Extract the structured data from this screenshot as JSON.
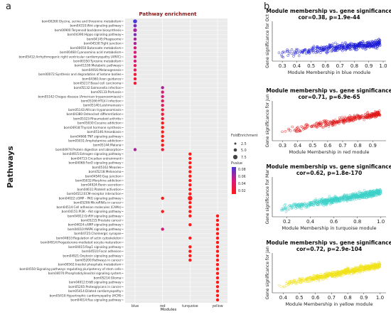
{
  "panel_labels": {
    "a": "a",
    "b": "b"
  },
  "chart_data": [
    {
      "type": "scatter",
      "title": "Pathway enrichment",
      "xlabel": "Modules",
      "ylabel": "Pathways",
      "categories": [
        "blue",
        "red",
        "turquoise",
        "yellow"
      ],
      "size_legend": {
        "title": "FoldEnrichment",
        "values": [
          "2.5",
          "5.0",
          "7.5"
        ]
      },
      "color_legend": {
        "title": "Pvalue",
        "ticks": [
          "0.08",
          "0.06",
          "0.04",
          "0.02"
        ],
        "colors": [
          "#4a38d8",
          "#d81a7a",
          "#ff1a1a"
        ]
      },
      "pathways": [
        "bom00260:Glycine, serine and threonine metabolism~",
        "bom04310:Wnt signaling pathway~",
        "bom00900:Terpenoid backbone biosynthesis~",
        "bom04390:Hippo signaling pathway~",
        "bom04145:Phagosome~",
        "bom04530:Tight junction~",
        "bom00650:Butanoate metabolism~",
        "bom00460:Cyanoamino acid metabolism~",
        "bom05412:Arrhythmogenic right ventricular cardiomyopathy (ARVC)~",
        "bom00350:Tyrosine metabolism~",
        "bom01100:Metabolic pathways~",
        "bom04916:Melanogenesis~",
        "bom00072:Synthesis and degradation of ketone bodies~",
        "bom04360:Axon guidance~",
        "bom05217:Basal cell carcinoma~",
        "bom05132:Salmonella infection~",
        "bom05133:Pertussis~",
        "bom05142:Chagas disease (American trypanosomiasis)~",
        "bom05166:HTLV-I infection~",
        "bom05140:Leishmaniasis~",
        "bom05143:African trypanosomiasis~",
        "bom04380:Osteoclast differentiation~",
        "bom05323:Rheumatoid arthritis~",
        "bom05030:Cocaine addiction~",
        "bom04918:Thyroid hormone synthesis~",
        "bom05146:Amoebiasis~",
        "bom04668:TNF signaling pathway~",
        "bom05031:Amphetamine addiction~",
        "bom05144:Malaria~",
        "bom04974:Protein digestion and absorption~",
        "bom04915:Estrogen signaling pathway~",
        "bom04713:Circadian entrainment~",
        "bom04068:FoxO signaling pathway~",
        "bom05162:Measles~",
        "bom05218:Melanoma~",
        "bom04540:Gap junction~",
        "bom05032:Morphine addiction~",
        "bom04924:Renin secretion~",
        "bom04611:Platelet activation~",
        "bom04512:ECM-receptor interaction~",
        "bom04022:cGMP - PKG signaling pathway~",
        "bom05206:MicroRNAs in cancer~",
        "bom04514:Cell adhesion molecules (CAMs)~",
        "bom04151:PI3K - Akt signaling pathway~",
        "bom04912:GnRH signaling pathway~",
        "bom05215:Prostate cancer~",
        "bom04024:cAMP signaling pathway~",
        "bom04010:MAPK signaling pathway~",
        "bom04725:Cholinergic synapse~",
        "bom04810:Regulation of actin cytoskeleton~",
        "bom04914:Progesterone-mediated oocyte maturation~",
        "bom04015:Rap1 signaling pathway~",
        "bom04510:Focal adhesion~",
        "bom04921:Oxytocin signaling pathway~",
        "bom05200:Pathways in cancer~",
        "bom00562:Inositol phosphate metabolism~",
        "bom04550:Signaling pathways regulating pluripotency of stem cells~",
        "bom04070:Phosphatidylinositol signaling system~",
        "bom05214:Glioma~",
        "bom04012:ErbB signaling pathway~",
        "bom05205:Proteoglycans in cancer~",
        "bom05414:Dilated cardiomyopathy~",
        "bom05410:Hypertrophic cardiomyopathy (HCM)~",
        "bom04014:Ras signaling pathway~"
      ],
      "points": [
        {
          "row": 0,
          "module": "blue",
          "fold": 4.5,
          "p": 0.08
        },
        {
          "row": 1,
          "module": "blue",
          "fold": 3.5,
          "p": 0.07
        },
        {
          "row": 2,
          "module": "blue",
          "fold": 4.0,
          "p": 0.06
        },
        {
          "row": 3,
          "module": "blue",
          "fold": 3.0,
          "p": 0.07
        },
        {
          "row": 4,
          "module": "blue",
          "fold": 3.0,
          "p": 0.06
        },
        {
          "row": 5,
          "module": "blue",
          "fold": 3.0,
          "p": 0.06
        },
        {
          "row": 6,
          "module": "blue",
          "fold": 3.0,
          "p": 0.05
        },
        {
          "row": 7,
          "module": "blue",
          "fold": 3.0,
          "p": 0.05
        },
        {
          "row": 8,
          "module": "blue",
          "fold": 3.0,
          "p": 0.05
        },
        {
          "row": 9,
          "module": "blue",
          "fold": 3.0,
          "p": 0.05
        },
        {
          "row": 10,
          "module": "blue",
          "fold": 3.0,
          "p": 0.04
        },
        {
          "row": 11,
          "module": "blue",
          "fold": 3.0,
          "p": 0.04
        },
        {
          "row": 12,
          "module": "blue",
          "fold": 3.0,
          "p": 0.03
        },
        {
          "row": 13,
          "module": "blue",
          "fold": 3.0,
          "p": 0.03
        },
        {
          "row": 14,
          "module": "blue",
          "fold": 3.0,
          "p": 0.03
        },
        {
          "row": 15,
          "module": "red",
          "fold": 3.0,
          "p": 0.06
        },
        {
          "row": 16,
          "module": "red",
          "fold": 3.0,
          "p": 0.05
        },
        {
          "row": 17,
          "module": "red",
          "fold": 3.0,
          "p": 0.05
        },
        {
          "row": 18,
          "module": "red",
          "fold": 3.0,
          "p": 0.04
        },
        {
          "row": 19,
          "module": "red",
          "fold": 3.0,
          "p": 0.04
        },
        {
          "row": 20,
          "module": "red",
          "fold": 3.0,
          "p": 0.03
        },
        {
          "row": 21,
          "module": "red",
          "fold": 3.0,
          "p": 0.03
        },
        {
          "row": 22,
          "module": "red",
          "fold": 3.0,
          "p": 0.03
        },
        {
          "row": 23,
          "module": "red",
          "fold": 3.0,
          "p": 0.02
        },
        {
          "row": 24,
          "module": "red",
          "fold": 3.0,
          "p": 0.02
        },
        {
          "row": 25,
          "module": "red",
          "fold": 3.0,
          "p": 0.02
        },
        {
          "row": 26,
          "module": "red",
          "fold": 3.0,
          "p": 0.02
        },
        {
          "row": 27,
          "module": "red",
          "fold": 3.0,
          "p": 0.02
        },
        {
          "row": 28,
          "module": "red",
          "fold": 3.0,
          "p": 0.02
        },
        {
          "row": 29,
          "module": "blue",
          "fold": 3.0,
          "p": 0.06
        },
        {
          "row": 29,
          "module": "red",
          "fold": 3.0,
          "p": 0.03
        },
        {
          "row": 30,
          "module": "turquoise",
          "fold": 3.0,
          "p": 0.02
        },
        {
          "row": 31,
          "module": "turquoise",
          "fold": 3.0,
          "p": 0.02
        },
        {
          "row": 32,
          "module": "turquoise",
          "fold": 3.0,
          "p": 0.02
        },
        {
          "row": 33,
          "module": "turquoise",
          "fold": 3.0,
          "p": 0.02
        },
        {
          "row": 34,
          "module": "turquoise",
          "fold": 3.0,
          "p": 0.02
        },
        {
          "row": 35,
          "module": "turquoise",
          "fold": 3.0,
          "p": 0.02
        },
        {
          "row": 36,
          "module": "turquoise",
          "fold": 3.0,
          "p": 0.02
        },
        {
          "row": 37,
          "module": "turquoise",
          "fold": 3.0,
          "p": 0.02
        },
        {
          "row": 38,
          "module": "turquoise",
          "fold": 3.0,
          "p": 0.02
        },
        {
          "row": 39,
          "module": "turquoise",
          "fold": 3.0,
          "p": 0.02
        },
        {
          "row": 40,
          "module": "red",
          "fold": 3.0,
          "p": 0.02
        },
        {
          "row": 40,
          "module": "turquoise",
          "fold": 5.5,
          "p": 0.02
        },
        {
          "row": 41,
          "module": "turquoise",
          "fold": 3.0,
          "p": 0.02
        },
        {
          "row": 42,
          "module": "turquoise",
          "fold": 3.0,
          "p": 0.02
        },
        {
          "row": 43,
          "module": "red",
          "fold": 3.0,
          "p": 0.02
        },
        {
          "row": 43,
          "module": "turquoise",
          "fold": 3.0,
          "p": 0.02
        },
        {
          "row": 44,
          "module": "turquoise",
          "fold": 3.0,
          "p": 0.02
        },
        {
          "row": 44,
          "module": "yellow",
          "fold": 3.0,
          "p": 0.02
        },
        {
          "row": 45,
          "module": "yellow",
          "fold": 3.0,
          "p": 0.02
        },
        {
          "row": 46,
          "module": "turquoise",
          "fold": 3.0,
          "p": 0.02
        },
        {
          "row": 46,
          "module": "yellow",
          "fold": 3.0,
          "p": 0.02
        },
        {
          "row": 47,
          "module": "red",
          "fold": 3.0,
          "p": 0.05
        },
        {
          "row": 47,
          "module": "yellow",
          "fold": 3.0,
          "p": 0.02
        },
        {
          "row": 48,
          "module": "yellow",
          "fold": 3.0,
          "p": 0.02
        },
        {
          "row": 49,
          "module": "turquoise",
          "fold": 3.0,
          "p": 0.02
        },
        {
          "row": 49,
          "module": "yellow",
          "fold": 3.0,
          "p": 0.02
        },
        {
          "row": 50,
          "module": "yellow",
          "fold": 3.0,
          "p": 0.02
        },
        {
          "row": 51,
          "module": "turquoise",
          "fold": 3.0,
          "p": 0.02
        },
        {
          "row": 51,
          "module": "yellow",
          "fold": 3.0,
          "p": 0.02
        },
        {
          "row": 52,
          "module": "turquoise",
          "fold": 3.0,
          "p": 0.02
        },
        {
          "row": 52,
          "module": "yellow",
          "fold": 3.0,
          "p": 0.02
        },
        {
          "row": 53,
          "module": "turquoise",
          "fold": 3.0,
          "p": 0.02
        },
        {
          "row": 53,
          "module": "yellow",
          "fold": 3.0,
          "p": 0.02
        },
        {
          "row": 54,
          "module": "turquoise",
          "fold": 3.0,
          "p": 0.02
        },
        {
          "row": 54,
          "module": "yellow",
          "fold": 3.0,
          "p": 0.02
        },
        {
          "row": 55,
          "module": "yellow",
          "fold": 3.0,
          "p": 0.02
        },
        {
          "row": 56,
          "module": "yellow",
          "fold": 3.0,
          "p": 0.02
        },
        {
          "row": 57,
          "module": "yellow",
          "fold": 3.0,
          "p": 0.02
        },
        {
          "row": 58,
          "module": "yellow",
          "fold": 3.0,
          "p": 0.02
        },
        {
          "row": 59,
          "module": "yellow",
          "fold": 3.0,
          "p": 0.02
        },
        {
          "row": 60,
          "module": "yellow",
          "fold": 3.0,
          "p": 0.02
        },
        {
          "row": 61,
          "module": "yellow",
          "fold": 3.0,
          "p": 0.02
        },
        {
          "row": 62,
          "module": "yellow",
          "fold": 3.0,
          "p": 0.02
        },
        {
          "row": 63,
          "module": "yellow",
          "fold": 3.0,
          "p": 0.02
        }
      ]
    },
    {
      "type": "scatter",
      "title": "Module membership vs. gene significance",
      "subtitle": "cor=0.38, p=1.9e-44",
      "xlabel": "Module Membership in blue module",
      "ylabel": "Gene significance for Oct",
      "color": "#1a1ad8",
      "xticks": [
        "0.3",
        "0.4",
        "0.5",
        "0.6",
        "0.7",
        "0.8",
        "0.9",
        "1.0"
      ],
      "xlim": [
        0.25,
        1.0
      ],
      "cor": 0.38,
      "n_points": 430
    },
    {
      "type": "scatter",
      "title": "Module membership vs. gene significance",
      "subtitle": "cor=0.71, p=6.9e-65",
      "xlabel": "Module Membership in red module",
      "ylabel": "Gene significance for Jun",
      "color": "#e01818",
      "xticks": [
        "0.3",
        "0.4",
        "0.5",
        "0.6",
        "0.7",
        "0.8",
        "0.9"
      ],
      "xlim": [
        0.25,
        0.97
      ],
      "cor": 0.71,
      "n_points": 330
    },
    {
      "type": "scatter",
      "title": "Module membership vs. gene significance",
      "subtitle": "cor=0.62, p=1.8e-170",
      "xlabel": "Module Membership in turquoise module",
      "ylabel": "Gene significance for Mar",
      "color": "#3cd0c8",
      "xticks": [
        "0.2",
        "0.4",
        "0.6",
        "0.8",
        "1.0"
      ],
      "xlim": [
        0.1,
        1.02
      ],
      "cor": 0.62,
      "n_points": 650
    },
    {
      "type": "scatter",
      "title": "Module membership vs. gene significance",
      "subtitle": "cor=0.72, p=2.9e-104",
      "xlabel": "Module Membership in yellow module",
      "ylabel": "Gene significance for Jan",
      "color": "#f0e21a",
      "xticks": [
        "0.4",
        "0.5",
        "0.6",
        "0.7",
        "0.8",
        "0.9",
        "1.0"
      ],
      "xlim": [
        0.35,
        1.02
      ],
      "cor": 0.72,
      "n_points": 600
    }
  ]
}
